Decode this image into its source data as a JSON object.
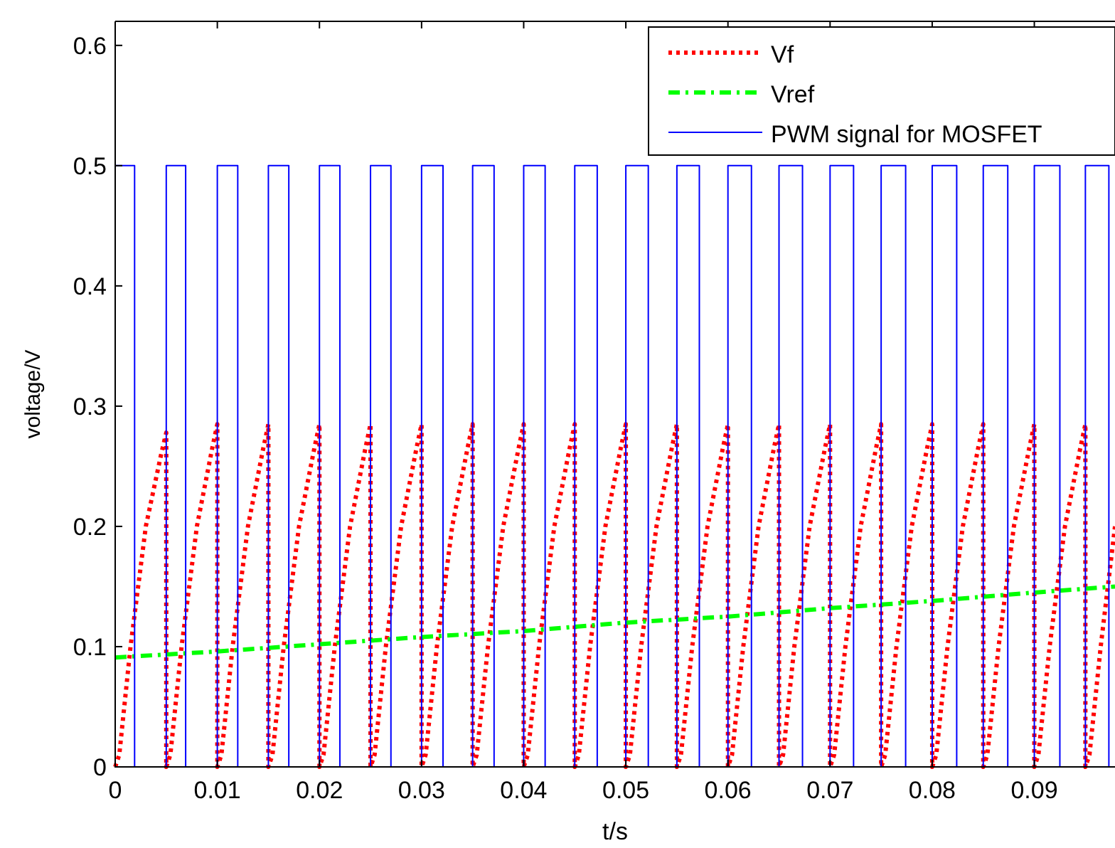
{
  "chart_data": {
    "type": "line",
    "xlabel": "t/s",
    "ylabel": "voltage/V",
    "xlim": [
      0,
      0.0979
    ],
    "ylim": [
      0,
      0.62
    ],
    "xticks": [
      0,
      0.01,
      0.02,
      0.03,
      0.04,
      0.05,
      0.06,
      0.07,
      0.08,
      0.09
    ],
    "yticks": [
      0,
      0.1,
      0.2,
      0.3,
      0.4,
      0.5,
      0.6
    ],
    "grid": false,
    "legend": "top right",
    "series": [
      {
        "name": "Vf",
        "color": "#ff0000",
        "line_style": "dotted",
        "x": [
          0,
          0.0004,
          0.0015,
          0.003,
          0.0045,
          0.005,
          0.005,
          0.0054,
          0.0065,
          0.008,
          0.0095,
          0.01,
          0.01,
          0.0104,
          0.0115,
          0.013,
          0.0145,
          0.015,
          0.015,
          0.0154,
          0.0165,
          0.018,
          0.0195,
          0.02,
          0.02,
          0.0204,
          0.0215,
          0.023,
          0.0245,
          0.025,
          0.025,
          0.0254,
          0.0265,
          0.028,
          0.0295,
          0.03,
          0.03,
          0.0304,
          0.0315,
          0.033,
          0.0345,
          0.035,
          0.035,
          0.0354,
          0.0365,
          0.038,
          0.0395,
          0.04,
          0.04,
          0.0404,
          0.0415,
          0.043,
          0.0445,
          0.045,
          0.045,
          0.0454,
          0.0465,
          0.048,
          0.0495,
          0.05,
          0.05,
          0.0504,
          0.0515,
          0.053,
          0.0545,
          0.055,
          0.055,
          0.0554,
          0.0565,
          0.058,
          0.0595,
          0.06,
          0.06,
          0.0604,
          0.0615,
          0.063,
          0.0645,
          0.065,
          0.065,
          0.0654,
          0.0665,
          0.068,
          0.0695,
          0.07,
          0.07,
          0.0704,
          0.0715,
          0.073,
          0.0745,
          0.075,
          0.075,
          0.0754,
          0.0765,
          0.078,
          0.0795,
          0.08,
          0.08,
          0.0804,
          0.0815,
          0.083,
          0.0845,
          0.085,
          0.085,
          0.0854,
          0.0865,
          0.088,
          0.0895,
          0.09,
          0.09,
          0.0904,
          0.0915,
          0.093,
          0.0945,
          0.095,
          0.095,
          0.0954,
          0.0965,
          0.0979
        ],
        "values": [
          0,
          0.01,
          0.1,
          0.2,
          0.26,
          0.278,
          0,
          0.01,
          0.1,
          0.2,
          0.265,
          0.285,
          0,
          0.01,
          0.1,
          0.2,
          0.265,
          0.285,
          0,
          0.01,
          0.1,
          0.2,
          0.265,
          0.285,
          0,
          0.01,
          0.1,
          0.2,
          0.265,
          0.285,
          0,
          0.01,
          0.1,
          0.2,
          0.265,
          0.285,
          0,
          0.01,
          0.1,
          0.2,
          0.265,
          0.285,
          0,
          0.01,
          0.1,
          0.2,
          0.265,
          0.285,
          0,
          0.01,
          0.1,
          0.2,
          0.265,
          0.285,
          0,
          0.01,
          0.1,
          0.2,
          0.265,
          0.285,
          0,
          0.01,
          0.1,
          0.2,
          0.265,
          0.285,
          0,
          0.01,
          0.1,
          0.2,
          0.265,
          0.285,
          0,
          0.01,
          0.1,
          0.2,
          0.265,
          0.285,
          0,
          0.01,
          0.1,
          0.2,
          0.265,
          0.285,
          0,
          0.01,
          0.1,
          0.2,
          0.265,
          0.285,
          0,
          0.01,
          0.1,
          0.2,
          0.265,
          0.285,
          0,
          0.01,
          0.1,
          0.2,
          0.265,
          0.285,
          0,
          0.01,
          0.1,
          0.2,
          0.265,
          0.285,
          0,
          0.01,
          0.1,
          0.2,
          0.265,
          0.285,
          0,
          0.01,
          0.1,
          0.2
        ]
      },
      {
        "name": "Vref",
        "color": "#00ff00",
        "line_style": "dashed",
        "x": [
          0,
          0.01,
          0.02,
          0.03,
          0.04,
          0.05,
          0.06,
          0.07,
          0.08,
          0.09,
          0.0979
        ],
        "values": [
          0.091,
          0.096,
          0.102,
          0.108,
          0.113,
          0.12,
          0.125,
          0.132,
          0.138,
          0.145,
          0.15
        ]
      },
      {
        "name": "PWM signal for MOSFET",
        "type": "step",
        "color": "#0000ff",
        "line_style": "solid",
        "x": [
          0,
          0.0019,
          0.005,
          0.0069,
          0.01,
          0.012,
          0.015,
          0.017,
          0.02,
          0.022,
          0.025,
          0.027,
          0.03,
          0.0321,
          0.035,
          0.0371,
          0.04,
          0.0421,
          0.045,
          0.0472,
          0.05,
          0.0522,
          0.055,
          0.0572,
          0.06,
          0.0623,
          0.065,
          0.0673,
          0.07,
          0.0723,
          0.075,
          0.0774,
          0.08,
          0.0824,
          0.085,
          0.0874,
          0.09,
          0.0925,
          0.095,
          0.0973
        ],
        "values": [
          0.5,
          0,
          0.5,
          0,
          0.5,
          0,
          0.5,
          0,
          0.5,
          0,
          0.5,
          0,
          0.5,
          0,
          0.5,
          0,
          0.5,
          0,
          0.5,
          0,
          0.5,
          0,
          0.5,
          0,
          0.5,
          0,
          0.5,
          0,
          0.5,
          0,
          0.5,
          0,
          0.5,
          0,
          0.5,
          0,
          0.5,
          0,
          0.5,
          0
        ]
      }
    ]
  }
}
